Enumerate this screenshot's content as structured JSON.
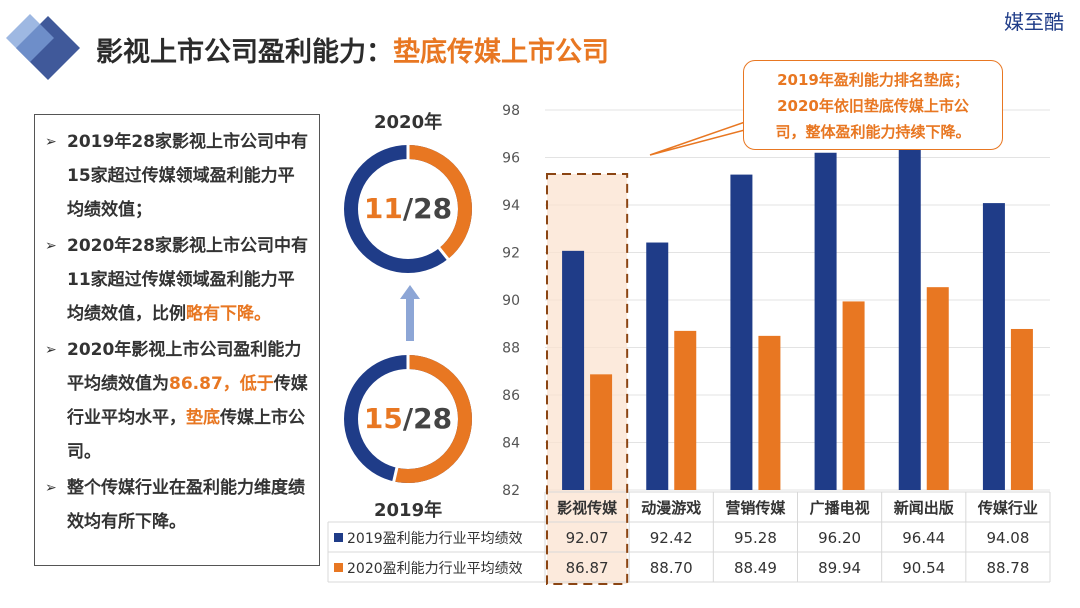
{
  "title": {
    "main": "影视上市公司盈利能力：",
    "highlight": "垫底传媒上市公司"
  },
  "brand": "媒至酷",
  "colors": {
    "navy": "#1f3c88",
    "orange": "#e87722"
  },
  "bullets": [
    {
      "parts": [
        {
          "t": "2019年28家影视上市公司中有15家超过传媒领域盈利能力平均绩效值；",
          "hl": false
        }
      ]
    },
    {
      "parts": [
        {
          "t": "2020年28家影视上市公司中有11家超过传媒领域盈利能力平均绩效值，比例",
          "hl": false
        },
        {
          "t": "略有下降。",
          "hl": true
        }
      ]
    },
    {
      "parts": [
        {
          "t": "2020年影视上市公司盈利能力平均绩效值为",
          "hl": false
        },
        {
          "t": "86.87，低于",
          "hl": true
        },
        {
          "t": "传媒行业平均水平，",
          "hl": false
        },
        {
          "t": "垫底",
          "hl": true
        },
        {
          "t": "传媒上市公司。",
          "hl": false
        }
      ]
    },
    {
      "parts": [
        {
          "t": "整个传媒行业在盈利能力维度绩效均有所下降。",
          "hl": false
        }
      ]
    }
  ],
  "donuts": {
    "top": {
      "year": "2020年",
      "num": "11",
      "den": "/28",
      "fraction": 0.3929
    },
    "bottom": {
      "year": "2019年",
      "num": "15",
      "den": "/28",
      "fraction": 0.5357
    }
  },
  "callout": [
    "2019年盈利能力排名垫底；",
    "2020年依旧垫底传媒上市公",
    "司，整体盈利能力持续下降。"
  ],
  "chart_data": {
    "type": "bar",
    "categories": [
      "影视传媒",
      "动漫游戏",
      "营销传媒",
      "广播电视",
      "新闻出版",
      "传媒行业"
    ],
    "series": [
      {
        "name": "2019盈利能力行业平均绩效",
        "values": [
          92.07,
          92.42,
          95.28,
          96.2,
          96.44,
          94.08
        ],
        "color": "#1f3c88"
      },
      {
        "name": "2020盈利能力行业平均绩效",
        "values": [
          86.87,
          88.7,
          88.49,
          89.94,
          90.54,
          88.78
        ],
        "color": "#e87722"
      }
    ],
    "ylim": [
      82,
      98
    ],
    "yticks": [
      82,
      84,
      86,
      88,
      90,
      92,
      94,
      96,
      98
    ],
    "yticklabels": [
      "82",
      "84",
      "86",
      "88",
      "90",
      "92",
      "94",
      "96",
      "98"
    ],
    "valuelabels": [
      [
        "92.07",
        "92.42",
        "95.28",
        "96.20",
        "96.44",
        "94.08"
      ],
      [
        "86.87",
        "88.70",
        "88.49",
        "89.94",
        "90.54",
        "88.78"
      ]
    ],
    "highlight_category": "影视传媒",
    "grid": true,
    "legend": "data-table"
  }
}
